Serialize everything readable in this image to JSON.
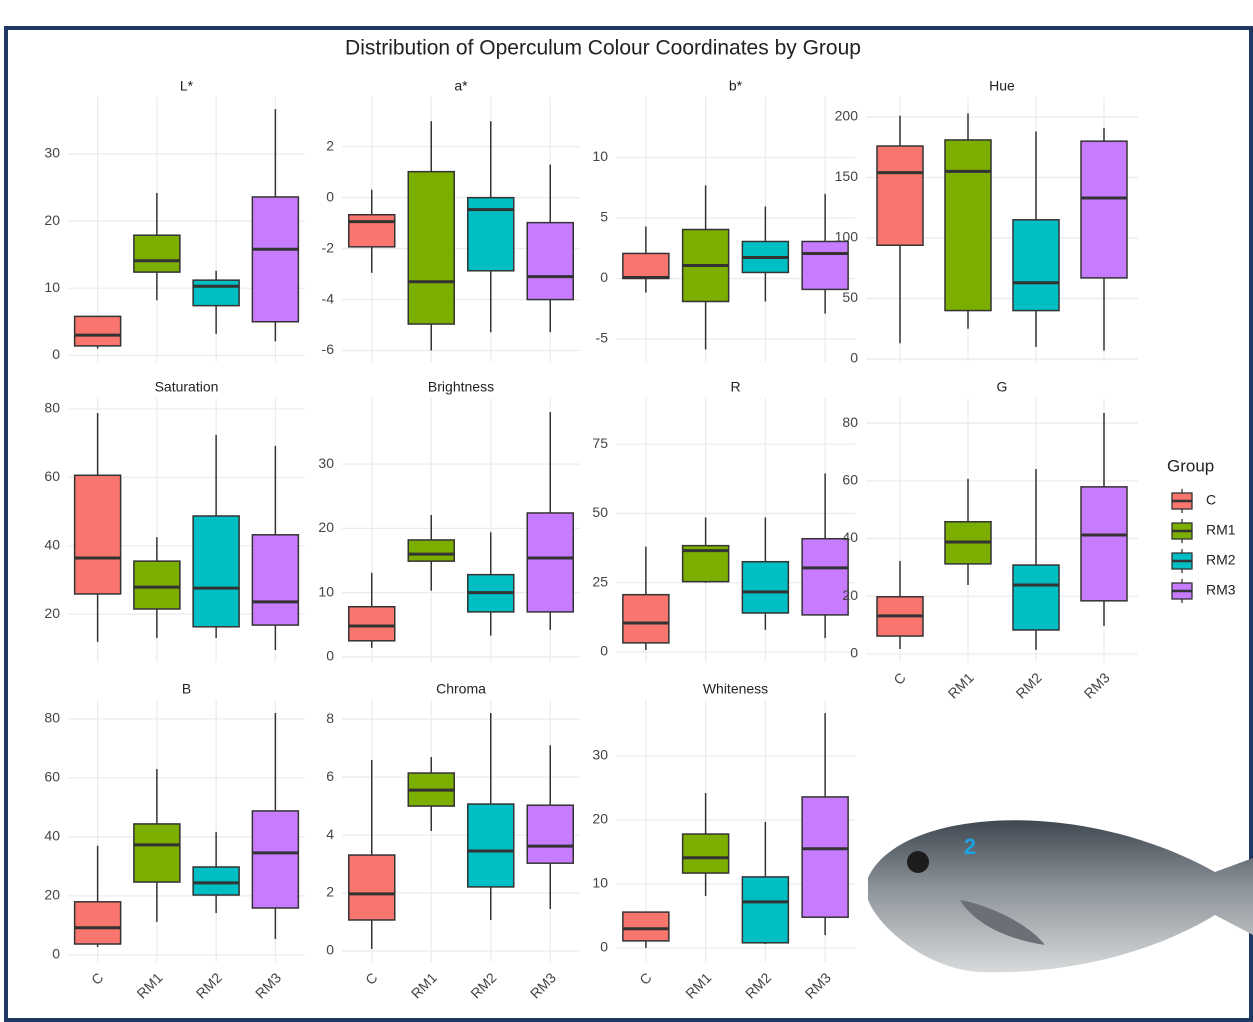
{
  "title": "Distribution of Operculum Colour Coordinates by Group",
  "image_label": "2",
  "legend": {
    "title": "Group",
    "items": [
      {
        "name": "C",
        "color": "#F8766D"
      },
      {
        "name": "RM1",
        "color": "#7CAE00"
      },
      {
        "name": "RM2",
        "color": "#00BFC4"
      },
      {
        "name": "RM3",
        "color": "#C77CFF"
      }
    ]
  },
  "chart_data": [
    {
      "type": "box",
      "title": "L*",
      "ylim": [
        -1,
        38.5
      ],
      "yticks": [
        0,
        10,
        20,
        30
      ],
      "min": [
        1,
        8.2,
        3.2,
        2.1
      ],
      "q1": [
        1.4,
        12.4,
        7.4,
        5
      ],
      "median": [
        3,
        14.1,
        10.3,
        15.8
      ],
      "q3": [
        5.8,
        17.9,
        11.2,
        23.6
      ],
      "max": [
        5.8,
        24.2,
        12.6,
        36.7
      ]
    },
    {
      "type": "box",
      "title": "a*",
      "ylim": [
        -6.45,
        3.95
      ],
      "yticks": [
        -6,
        -4,
        -2,
        0,
        2
      ],
      "min": [
        -2.95,
        -6,
        -5.28,
        -5.28
      ],
      "q1": [
        -1.93,
        -4.96,
        -2.87,
        -4
      ],
      "median": [
        -0.94,
        -3.3,
        -0.47,
        -3.1
      ],
      "q3": [
        -0.67,
        1.02,
        0,
        -0.98
      ],
      "max": [
        0.31,
        3,
        3,
        1.3
      ]
    },
    {
      "type": "box",
      "title": "b*",
      "ylim": [
        -6.9,
        15
      ],
      "yticks": [
        -5,
        0,
        5,
        10
      ],
      "min": [
        -1.16,
        -5.87,
        -1.9,
        -2.9
      ],
      "q1": [
        0,
        -1.9,
        0.5,
        -0.9
      ],
      "median": [
        0.08,
        1.07,
        1.74,
        2.07
      ],
      "q3": [
        2.07,
        4.05,
        3.06,
        3.06
      ],
      "max": [
        4.3,
        7.7,
        5.95,
        7
      ]
    },
    {
      "type": "box",
      "title": "Hue",
      "ylim": [
        -2.5,
        216.5
      ],
      "yticks": [
        0,
        50,
        100,
        150,
        200
      ],
      "min": [
        13,
        25,
        10,
        7
      ],
      "q1": [
        94,
        40,
        40,
        67
      ],
      "median": [
        154,
        155,
        63,
        133
      ],
      "q3": [
        176,
        181,
        115,
        180
      ],
      "max": [
        201,
        203,
        188,
        191
      ]
    },
    {
      "type": "box",
      "title": "Saturation",
      "ylim": [
        6,
        83.2
      ],
      "yticks": [
        20,
        40,
        60,
        80
      ],
      "min": [
        11.9,
        13,
        13,
        9.5
      ],
      "q1": [
        25.9,
        21.5,
        16.3,
        16.8
      ],
      "median": [
        36.4,
        27.9,
        27.6,
        23.6
      ],
      "q3": [
        60.6,
        35.5,
        48.7,
        43.2
      ],
      "max": [
        78.8,
        42.5,
        72.4,
        69.2
      ]
    },
    {
      "type": "box",
      "title": "Brightness",
      "ylim": [
        -0.8,
        40.3
      ],
      "yticks": [
        0,
        10,
        20,
        30
      ],
      "min": [
        1.4,
        10.3,
        3.3,
        4.2
      ],
      "q1": [
        2.5,
        14.9,
        7,
        7
      ],
      "median": [
        4.8,
        16,
        10,
        15.4
      ],
      "q3": [
        7.8,
        18.2,
        12.8,
        22.4
      ],
      "max": [
        13.1,
        22.1,
        19.4,
        38.1
      ]
    },
    {
      "type": "box",
      "title": "R",
      "ylim": [
        -3.6,
        91.7
      ],
      "yticks": [
        0,
        25,
        50,
        75
      ],
      "min": [
        0.7,
        25,
        8,
        5
      ],
      "q1": [
        3.3,
        25.4,
        14.1,
        13.4
      ],
      "median": [
        10.5,
        36.6,
        21.7,
        30.4
      ],
      "q3": [
        20.7,
        38.4,
        32.6,
        40.9
      ],
      "max": [
        38,
        48.6,
        48.6,
        64.5
      ]
    },
    {
      "type": "box",
      "title": "G",
      "ylim": [
        -2.8,
        88.7
      ],
      "yticks": [
        0,
        20,
        40,
        60,
        80
      ],
      "categories": [
        "C",
        "RM1",
        "RM2",
        "RM3"
      ],
      "min": [
        1.7,
        23.9,
        1.4,
        9.7
      ],
      "q1": [
        6.2,
        31.2,
        8.3,
        18.4
      ],
      "median": [
        13.2,
        38.8,
        23.9,
        41.2
      ],
      "q3": [
        19.8,
        45.8,
        30.8,
        57.9
      ],
      "max": [
        32.2,
        60.7,
        64.1,
        83.5
      ]
    },
    {
      "type": "box",
      "title": "B",
      "ylim": [
        -2.4,
        86.4
      ],
      "yticks": [
        0,
        20,
        40,
        60,
        80
      ],
      "categories": [
        "C",
        "RM1",
        "RM2",
        "RM3"
      ],
      "min": [
        2.7,
        11.2,
        14.2,
        5.4
      ],
      "q1": [
        3.7,
        24.7,
        20.3,
        15.9
      ],
      "median": [
        9.2,
        37.3,
        24.4,
        34.6
      ],
      "q3": [
        18,
        44.4,
        29.8,
        48.8
      ],
      "max": [
        37,
        63,
        41.7,
        82
      ]
    },
    {
      "type": "box",
      "title": "Chroma",
      "ylim": [
        -0.38,
        8.66
      ],
      "yticks": [
        0,
        2,
        4,
        6,
        8
      ],
      "categories": [
        "C",
        "RM1",
        "RM2",
        "RM3"
      ],
      "min": [
        0.07,
        4.14,
        1.07,
        1.45
      ],
      "q1": [
        1.07,
        5,
        2.21,
        3.03
      ],
      "median": [
        1.97,
        5.55,
        3.45,
        3.62
      ],
      "q3": [
        3.31,
        6.14,
        5.07,
        5.03
      ],
      "max": [
        6.59,
        6.69,
        8.21,
        7.1
      ]
    },
    {
      "type": "box",
      "title": "Whiteness",
      "ylim": [
        -2.2,
        38.75
      ],
      "yticks": [
        0,
        10,
        20,
        30
      ],
      "categories": [
        "C",
        "RM1",
        "RM2",
        "RM3"
      ],
      "min": [
        0,
        8.1,
        0.6,
        2
      ],
      "q1": [
        1.1,
        11.7,
        0.8,
        4.8
      ],
      "median": [
        3,
        14.1,
        7.2,
        15.5
      ],
      "q3": [
        5.6,
        17.8,
        11.1,
        23.6
      ],
      "max": [
        5.6,
        24.2,
        19.7,
        36.7
      ]
    }
  ]
}
